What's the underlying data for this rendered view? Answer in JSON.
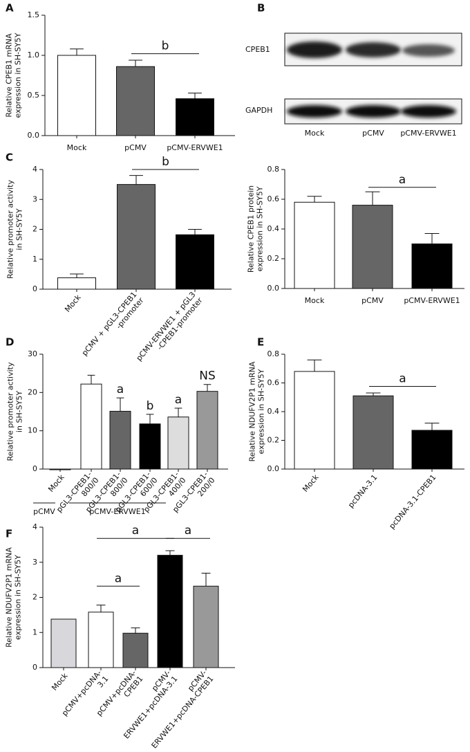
{
  "blot": {
    "panel": "B",
    "rows": [
      "CPEB1",
      "GAPDH"
    ],
    "lanes": [
      "Mock",
      "pCMV",
      "pCMV-ERVWE1"
    ]
  },
  "chart_data": [
    {
      "type": "bar",
      "panel": "A",
      "ylabel": [
        "Relative CPEB1 mRNA",
        "expression in SH-SY5Y"
      ],
      "categories": [
        "Mock",
        "pCMV",
        "pCMV-ERVWE1"
      ],
      "values": [
        1.0,
        0.86,
        0.46
      ],
      "errors": [
        0.08,
        0.08,
        0.07
      ],
      "colors": [
        "#ffffff",
        "#666666",
        "#000000"
      ],
      "ylim": [
        0,
        1.5
      ],
      "yticks": [
        {
          "value": 0,
          "label": "0.0"
        },
        0.5,
        {
          "value": 1,
          "label": "1.0"
        },
        1.5
      ],
      "annotations": [
        "b"
      ]
    },
    {
      "type": "bar",
      "panel": "C",
      "ylabel": [
        "Relative promoter activity",
        "in SH-SY5Y"
      ],
      "categories": [
        "Mock",
        [
          "pCMV + pGL3-CPEB1",
          "-promoter"
        ],
        [
          "pCMV-ERVWE1 + pGL3",
          "-CPEB1-promoter"
        ]
      ],
      "values": [
        0.38,
        3.5,
        1.82
      ],
      "errors": [
        0.13,
        0.3,
        0.18
      ],
      "colors": [
        "#ffffff",
        "#666666",
        "#000000"
      ],
      "ylim": [
        0,
        4
      ],
      "yticks": [
        0,
        1,
        2,
        3,
        4
      ],
      "annotations": [
        "b"
      ]
    },
    {
      "type": "bar",
      "ylabel": [
        "Relative CPEB1 protein",
        "expression in SH-SY5Y"
      ],
      "categories": [
        "Mock",
        "pCMV",
        "pCMV-ERVWE1"
      ],
      "values": [
        0.58,
        0.56,
        0.3
      ],
      "errors": [
        0.04,
        0.09,
        0.07
      ],
      "colors": [
        "#ffffff",
        "#666666",
        "#000000"
      ],
      "ylim": [
        0,
        0.8
      ],
      "yticks": [
        {
          "value": 0,
          "label": "0.0"
        },
        0.2,
        0.4,
        0.6,
        0.8
      ],
      "annotations": [
        "a"
      ]
    },
    {
      "type": "bar",
      "panel": "D",
      "ylabel": [
        "Relative promoter activity",
        "in SH-SY5Y"
      ],
      "categories": [
        "Mock",
        [
          "pGL3-CPEB1-",
          "800/0"
        ],
        [
          "pGL3-CPEB1-",
          "800/0"
        ],
        [
          "pGL3-CPEB1-",
          "600/0"
        ],
        [
          "pGL3-CPEB1-",
          "400/0"
        ],
        [
          "pGL3-CPEB1-",
          "200/0"
        ]
      ],
      "values": [
        0,
        22.2,
        15.1,
        11.8,
        13.6,
        20.3
      ],
      "errors": [
        null,
        2.3,
        3.5,
        2.5,
        2.3,
        1.8
      ],
      "colors": [
        "#ffffff",
        "#ffffff",
        "#666666",
        "#000000",
        "#dddddd",
        "#999999"
      ],
      "ylim": [
        0,
        30
      ],
      "yticks": [
        0,
        10,
        20,
        30
      ],
      "annotations": [
        "a",
        "b",
        "a",
        "NS"
      ],
      "groups": [
        "pCMV",
        "pCMV-ERVWE1"
      ]
    },
    {
      "type": "bar",
      "panel": "E",
      "ylabel": [
        "Relative NDUFV2P1 mRNA",
        "expression in SH-SY5Y"
      ],
      "categories": [
        "Mock",
        "pcDNA-3.1",
        "pcDNA-3.1-CPEB1"
      ],
      "values": [
        0.68,
        0.51,
        0.27
      ],
      "errors": [
        0.08,
        0.02,
        0.05
      ],
      "colors": [
        "#ffffff",
        "#666666",
        "#000000"
      ],
      "ylim": [
        0,
        0.8
      ],
      "yticks": [
        {
          "value": 0,
          "label": "0.0"
        },
        0.2,
        0.4,
        0.6,
        0.8
      ],
      "annotations": [
        "a"
      ]
    },
    {
      "type": "bar",
      "panel": "F",
      "ylabel": [
        "Relative NDUFV2P1 mRNA",
        "expression in SH-SY5Y"
      ],
      "categories": [
        "Mock",
        [
          "pCMV+pcDNA-",
          "3.1"
        ],
        [
          "pCMV+pcDNA-",
          "CPEB1"
        ],
        [
          "pCMV-",
          "ERVWE1+pcDNA-3.1"
        ],
        [
          "pCMV-",
          "ERVWE1+pcDNA-CPEB1"
        ]
      ],
      "values": [
        1.38,
        1.58,
        0.98,
        3.2,
        2.32
      ],
      "errors": [
        null,
        0.2,
        0.15,
        0.13,
        0.37
      ],
      "colors": [
        "#d8d8dc",
        "#ffffff",
        "#666666",
        "#000000",
        "#999999"
      ],
      "ylim": [
        0,
        4
      ],
      "yticks": [
        0,
        1,
        2,
        3,
        4
      ],
      "annotations": [
        "a",
        "a",
        "a"
      ]
    }
  ]
}
